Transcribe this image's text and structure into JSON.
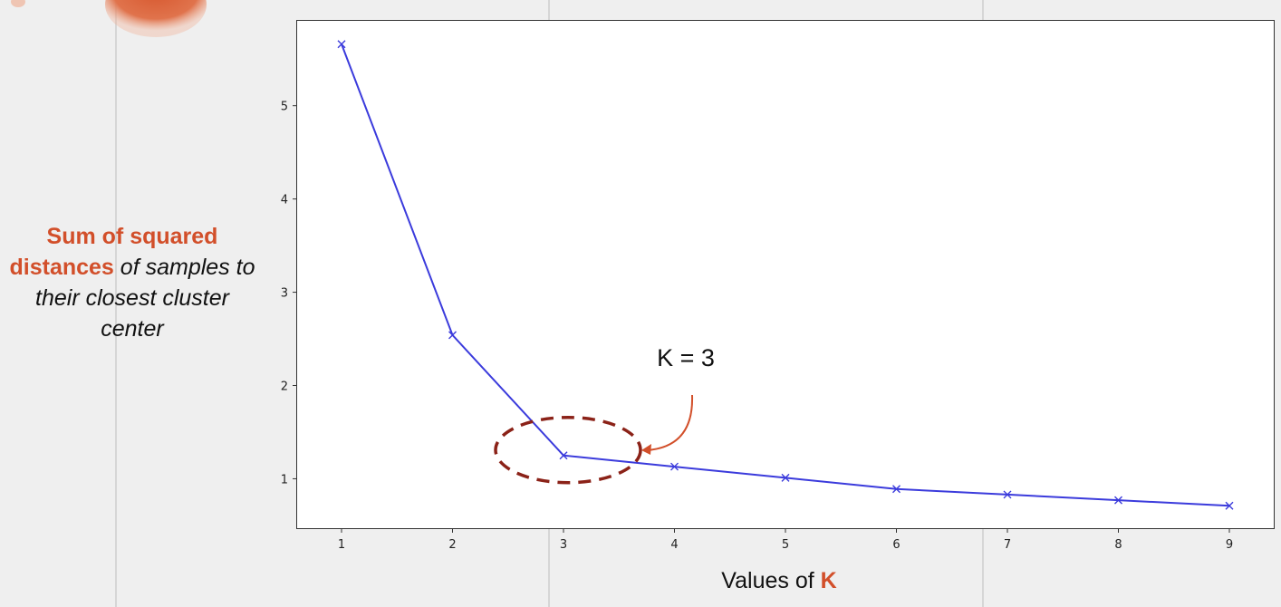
{
  "chart_data": {
    "type": "line",
    "title": "",
    "x": [
      1,
      2,
      3,
      4,
      5,
      6,
      7,
      8,
      9
    ],
    "series": [
      {
        "values": [
          5.66,
          2.54,
          1.25,
          1.13,
          1.01,
          0.89,
          0.83,
          0.77,
          0.71
        ]
      }
    ],
    "x_ticks": [
      "1",
      "2",
      "3",
      "4",
      "5",
      "6",
      "7",
      "8",
      "9"
    ],
    "y_ticks": [
      "1",
      "2",
      "3",
      "4",
      "5"
    ],
    "xlim": [
      0.6,
      9.4
    ],
    "ylim": [
      0.47,
      5.91
    ],
    "xlabel": {
      "prefix": "Values of ",
      "highlight": "K"
    },
    "ylabel": {
      "highlight": "Sum of squared distances",
      "rest": " of samples to their closest cluster center"
    },
    "annotation": {
      "text": "K = 3",
      "target_x": 3,
      "target_y": 1.25
    },
    "grid": false,
    "line_color": "#3b3bdc",
    "marker": "x",
    "accent_color": "#d24f2a",
    "circle_color": "#8b2218"
  }
}
